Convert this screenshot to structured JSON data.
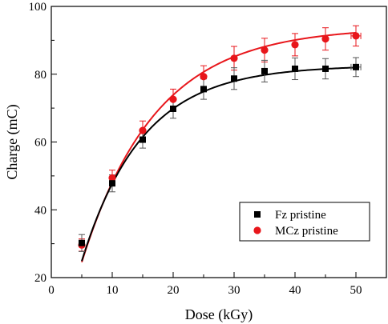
{
  "chart_data": {
    "type": "scatter",
    "xlabel": "Dose (kGy)",
    "ylabel": "Charge (mC)",
    "xlim": [
      0,
      55
    ],
    "ylim": [
      20,
      100
    ],
    "xticks": [
      0,
      10,
      20,
      30,
      40,
      50
    ],
    "yticks": [
      20,
      40,
      60,
      80,
      100
    ],
    "grid": false,
    "legend_position": "lower-right",
    "series": [
      {
        "name": "Fz pristine",
        "color": "#000000",
        "marker": "square",
        "x": [
          5,
          10,
          15,
          20,
          25,
          30,
          35,
          40,
          45,
          50
        ],
        "y": [
          30.2,
          47.8,
          60.7,
          69.8,
          75.6,
          78.7,
          80.9,
          81.6,
          81.6,
          82.1
        ],
        "yerr": [
          2.5,
          2.5,
          2.5,
          2.8,
          3.0,
          3.2,
          3.2,
          3.2,
          3.0,
          2.8
        ],
        "xerr": [
          0,
          0,
          0,
          0,
          0,
          0,
          0,
          0,
          0,
          0.8
        ],
        "fit_curve": {
          "y0": 82.6,
          "a": 95.4,
          "k": 0.1005
        }
      },
      {
        "name": "MCz pristine",
        "color": "#e8161b",
        "marker": "circle",
        "x": [
          5,
          10,
          15,
          20,
          25,
          30,
          35,
          40,
          45,
          50
        ],
        "y": [
          29.6,
          49.4,
          63.4,
          72.6,
          79.3,
          84.7,
          87.1,
          88.7,
          90.4,
          91.3
        ],
        "yerr": [
          1.8,
          2.3,
          2.8,
          3.0,
          3.2,
          3.5,
          3.5,
          3.3,
          3.3,
          3.0
        ],
        "xerr": [
          0,
          0,
          0,
          0,
          0,
          0,
          0,
          0,
          0,
          0.8
        ],
        "fit_curve": {
          "y0": 93.9,
          "a": 104.9,
          "k": 0.0828
        }
      }
    ]
  }
}
